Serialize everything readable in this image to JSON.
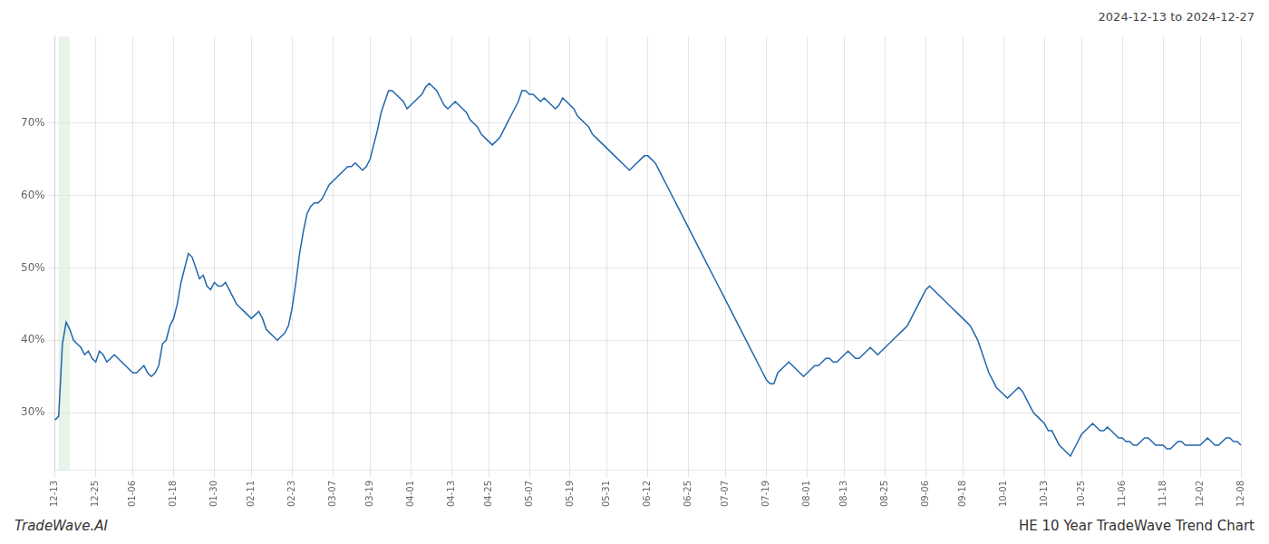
{
  "chart_data": {
    "type": "line",
    "title": "HE 10 Year TradeWave Trend Chart",
    "subtitle": "2024-12-13 to 2024-12-27",
    "annotations": [
      "TradeWave.AI"
    ],
    "color": "#2166ac",
    "grid": true,
    "ylim": [
      22,
      82
    ],
    "yticks": [
      {
        "value": 30,
        "label": "30%"
      },
      {
        "value": 40,
        "label": "40%"
      },
      {
        "value": 50,
        "label": "50%"
      },
      {
        "value": 60,
        "label": "60%"
      },
      {
        "value": 70,
        "label": "70%"
      }
    ],
    "shade": {
      "x": [
        1,
        4
      ],
      "color": "#d6edda"
    },
    "categories": [
      "12-13",
      null,
      null,
      null,
      null,
      null,
      null,
      null,
      null,
      null,
      null,
      "12-25",
      null,
      null,
      null,
      null,
      null,
      null,
      null,
      null,
      null,
      "01-06",
      null,
      null,
      null,
      null,
      null,
      null,
      null,
      null,
      null,
      null,
      "01-18",
      null,
      null,
      null,
      null,
      null,
      null,
      null,
      null,
      null,
      null,
      "01-30",
      null,
      null,
      null,
      null,
      null,
      null,
      null,
      null,
      null,
      "02-11",
      null,
      null,
      null,
      null,
      null,
      null,
      null,
      null,
      null,
      null,
      "02-23",
      null,
      null,
      null,
      null,
      null,
      null,
      null,
      null,
      null,
      null,
      "03-07",
      null,
      null,
      null,
      null,
      null,
      null,
      null,
      null,
      null,
      "03-19",
      null,
      null,
      null,
      null,
      null,
      null,
      null,
      null,
      null,
      null,
      "04-01",
      null,
      null,
      null,
      null,
      null,
      null,
      null,
      null,
      null,
      null,
      "04-13",
      null,
      null,
      null,
      null,
      null,
      null,
      null,
      null,
      null,
      "04-25",
      null,
      null,
      null,
      null,
      null,
      null,
      null,
      null,
      null,
      null,
      "05-07",
      null,
      null,
      null,
      null,
      null,
      null,
      null,
      null,
      null,
      null,
      "05-19",
      null,
      null,
      null,
      null,
      null,
      null,
      null,
      null,
      null,
      "05-31",
      null,
      null,
      null,
      null,
      null,
      null,
      null,
      null,
      null,
      null,
      "06-12",
      null,
      null,
      null,
      null,
      null,
      null,
      null,
      null,
      null,
      null,
      "06-25",
      null,
      null,
      null,
      null,
      null,
      null,
      null,
      null,
      null,
      "07-07",
      null,
      null,
      null,
      null,
      null,
      null,
      null,
      null,
      null,
      null,
      "07-19",
      null,
      null,
      null,
      null,
      null,
      null,
      null,
      null,
      null,
      null,
      "08-01",
      null,
      null,
      null,
      null,
      null,
      null,
      null,
      null,
      null,
      "08-13",
      null,
      null,
      null,
      null,
      null,
      null,
      null,
      null,
      null,
      null,
      "08-25",
      null,
      null,
      null,
      null,
      null,
      null,
      null,
      null,
      null,
      null,
      "09-06",
      null,
      null,
      null,
      null,
      null,
      null,
      null,
      null,
      null,
      "09-18",
      null,
      null,
      null,
      null,
      null,
      null,
      null,
      null,
      null,
      null,
      "10-01",
      null,
      null,
      null,
      null,
      null,
      null,
      null,
      null,
      null,
      null,
      "10-13",
      null,
      null,
      null,
      null,
      null,
      null,
      null,
      null,
      null,
      "10-25",
      null,
      null,
      null,
      null,
      null,
      null,
      null,
      null,
      null,
      null,
      "11-06",
      null,
      null,
      null,
      null,
      null,
      null,
      null,
      null,
      null,
      null,
      "11-18",
      null,
      null,
      null,
      null,
      null,
      null,
      null,
      null,
      null,
      "12-02",
      null,
      null,
      null,
      null,
      null,
      null,
      null,
      null,
      null,
      null,
      "12-08"
    ],
    "values": [
      29.0,
      29.5,
      39.5,
      42.5,
      41.5,
      40.0,
      39.5,
      39.0,
      38.0,
      38.5,
      37.5,
      37.0,
      38.5,
      38.0,
      37.0,
      37.5,
      38.0,
      37.5,
      37.0,
      36.5,
      36.0,
      35.5,
      35.5,
      36.0,
      36.5,
      35.5,
      35.0,
      35.5,
      36.5,
      39.5,
      40.0,
      42.0,
      43.0,
      45.0,
      48.0,
      50.0,
      52.0,
      51.5,
      50.0,
      48.5,
      49.0,
      47.5,
      47.0,
      48.0,
      47.5,
      47.5,
      48.0,
      47.0,
      46.0,
      45.0,
      44.5,
      44.0,
      43.5,
      43.0,
      43.5,
      44.0,
      43.0,
      41.5,
      41.0,
      40.5,
      40.0,
      40.5,
      41.0,
      42.0,
      44.5,
      48.0,
      52.0,
      55.0,
      57.5,
      58.5,
      59.0,
      59.0,
      59.5,
      60.5,
      61.5,
      62.0,
      62.5,
      63.0,
      63.5,
      64.0,
      64.0,
      64.5,
      64.0,
      63.5,
      64.0,
      65.0,
      67.0,
      69.0,
      71.5,
      73.0,
      74.5,
      74.5,
      74.0,
      73.5,
      73.0,
      72.0,
      72.5,
      73.0,
      73.5,
      74.0,
      75.0,
      75.5,
      75.0,
      74.5,
      73.5,
      72.5,
      72.0,
      72.5,
      73.0,
      72.5,
      72.0,
      71.5,
      70.5,
      70.0,
      69.5,
      68.5,
      68.0,
      67.5,
      67.0,
      67.5,
      68.0,
      69.0,
      70.0,
      71.0,
      72.0,
      73.0,
      74.5,
      74.5,
      74.0,
      74.0,
      73.5,
      73.0,
      73.5,
      73.0,
      72.5,
      72.0,
      72.5,
      73.5,
      73.0,
      72.5,
      72.0,
      71.0,
      70.5,
      70.0,
      69.5,
      68.5,
      68.0,
      67.5,
      67.0,
      66.5,
      66.0,
      65.5,
      65.0,
      64.5,
      64.0,
      63.5,
      64.0,
      64.5,
      65.0,
      65.5,
      65.5,
      65.0,
      64.5,
      63.5,
      62.5,
      61.5,
      60.5,
      59.5,
      58.5,
      57.5,
      56.5,
      55.5,
      54.5,
      53.5,
      52.5,
      51.5,
      50.5,
      49.5,
      48.5,
      47.5,
      46.5,
      45.5,
      44.5,
      43.5,
      42.5,
      41.5,
      40.5,
      39.5,
      38.5,
      37.5,
      36.5,
      35.5,
      34.5,
      34.0,
      34.0,
      35.5,
      36.0,
      36.5,
      37.0,
      36.5,
      36.0,
      35.5,
      35.0,
      35.5,
      36.0,
      36.5,
      36.5,
      37.0,
      37.5,
      37.5,
      37.0,
      37.0,
      37.5,
      38.0,
      38.5,
      38.0,
      37.5,
      37.5,
      38.0,
      38.5,
      39.0,
      38.5,
      38.0,
      38.5,
      39.0,
      39.5,
      40.0,
      40.5,
      41.0,
      41.5,
      42.0,
      43.0,
      44.0,
      45.0,
      46.0,
      47.0,
      47.5,
      47.0,
      46.5,
      46.0,
      45.5,
      45.0,
      44.5,
      44.0,
      43.5,
      43.0,
      42.5,
      42.0,
      41.0,
      40.0,
      38.5,
      37.0,
      35.5,
      34.5,
      33.5,
      33.0,
      32.5,
      32.0,
      32.5,
      33.0,
      33.5,
      33.0,
      32.0,
      31.0,
      30.0,
      29.5,
      29.0,
      28.5,
      27.5,
      27.5,
      26.5,
      25.5,
      25.0,
      24.5,
      24.0,
      25.0,
      26.0,
      27.0,
      27.5,
      28.0,
      28.5,
      28.0,
      27.5,
      27.5,
      28.0,
      27.5,
      27.0,
      26.5,
      26.5,
      26.0,
      26.0,
      25.5,
      25.5,
      26.0,
      26.5,
      26.5,
      26.0,
      25.5,
      25.5,
      25.5,
      25.0,
      25.0,
      25.5,
      26.0,
      26.0,
      25.5,
      25.5,
      25.5,
      25.5,
      25.5,
      26.0,
      26.5,
      26.0,
      25.5,
      25.5,
      26.0,
      26.5,
      26.5,
      26.0,
      26.0,
      25.5
    ]
  }
}
